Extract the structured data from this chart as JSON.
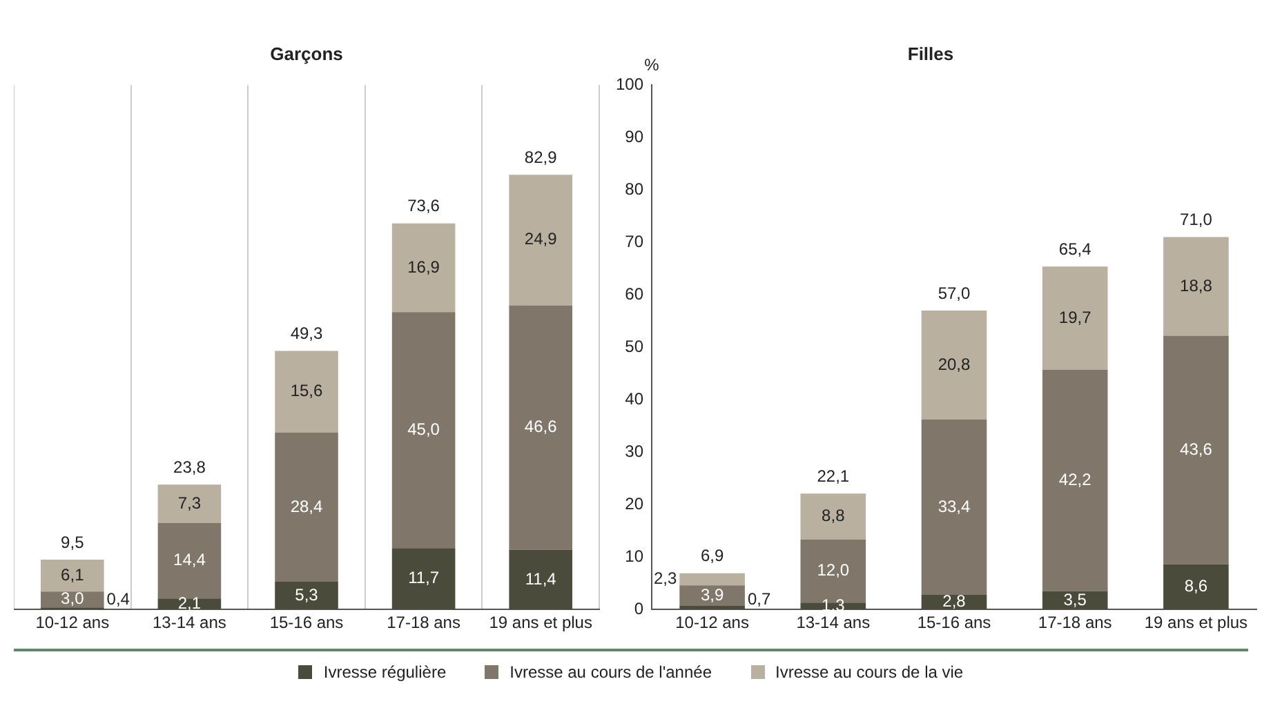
{
  "chart_data": [
    {
      "type": "bar",
      "stacked": true,
      "title": "Garçons",
      "categories": [
        "10-12 ans",
        "13-14 ans",
        "15-16 ans",
        "17-18 ans",
        "19 ans et plus"
      ],
      "ylim": [
        0,
        100
      ],
      "yticks": [
        0,
        10,
        20,
        30,
        40,
        50,
        60,
        70,
        80,
        90,
        100
      ],
      "tick_labels": "x",
      "grid": "x",
      "legend": "bottom",
      "series": [
        {
          "name": "Ivresse régulière",
          "color": "#4b4b3b",
          "values": [
            0.4,
            2.1,
            5.3,
            11.7,
            11.4
          ],
          "value_labels": [
            "0,4",
            "2,1",
            "5,3",
            "11,7",
            "11,4"
          ]
        },
        {
          "name": "Ivresse au cours de l'année",
          "color": "#80776a",
          "values": [
            3.0,
            14.4,
            28.4,
            45.0,
            46.6
          ],
          "value_labels": [
            "3,0",
            "14,4",
            "28,4",
            "45,0",
            "46,6"
          ]
        },
        {
          "name": "Ivresse au cours de la vie",
          "color": "#b9b09f",
          "values": [
            6.1,
            7.3,
            15.6,
            16.9,
            24.9
          ],
          "value_labels": [
            "6,1",
            "7,3",
            "15,6",
            "16,9",
            "24,9"
          ]
        }
      ],
      "totals": [
        "9,5",
        "23,8",
        "49,3",
        "73,6",
        "82,9"
      ]
    },
    {
      "type": "bar",
      "stacked": true,
      "title": "Filles",
      "ylabel": "%",
      "categories": [
        "10-12 ans",
        "13-14 ans",
        "15-16 ans",
        "17-18 ans",
        "19 ans et plus"
      ],
      "ylim": [
        0,
        100
      ],
      "yticks": [
        0,
        10,
        20,
        30,
        40,
        50,
        60,
        70,
        80,
        90,
        100
      ],
      "series": [
        {
          "color": "#4b4b3b",
          "values": [
            0.7,
            1.3,
            2.8,
            3.5,
            8.6
          ],
          "value_labels": [
            "0,7",
            "1,3",
            "2,8",
            "3,5",
            "8,6"
          ]
        },
        {
          "color": "#80776a",
          "values": [
            3.9,
            12.0,
            33.4,
            42.2,
            43.6
          ],
          "value_labels": [
            "3,9",
            "12,0",
            "33,4",
            "42,2",
            "43,6"
          ]
        },
        {
          "color": "#b9b09f",
          "values": [
            2.3,
            8.8,
            20.8,
            19.7,
            18.8
          ],
          "value_labels": [
            "2,3",
            "8,8",
            "20,8",
            "19,7",
            "18,8"
          ]
        }
      ],
      "totals": [
        "6,9",
        "22,1",
        "57,0",
        "65,4",
        "71,0"
      ]
    }
  ]
}
